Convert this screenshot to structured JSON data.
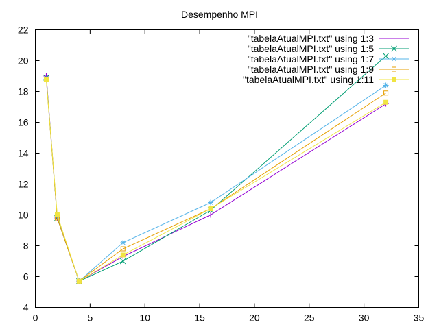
{
  "chart_data": {
    "type": "line",
    "title": "Desempenho MPI",
    "xlabel": "",
    "ylabel": "",
    "xlim": [
      0,
      35
    ],
    "ylim": [
      4,
      22
    ],
    "xticks": [
      0,
      5,
      10,
      15,
      20,
      25,
      30,
      35
    ],
    "yticks": [
      4,
      6,
      8,
      10,
      12,
      14,
      16,
      18,
      20,
      22
    ],
    "legend_position": "top-right",
    "x": [
      1,
      2,
      4,
      8,
      16,
      32
    ],
    "series": [
      {
        "name": "\"tabelaAtualMPI.txt\" using 1:3",
        "color": "#9400d3",
        "marker": "plus",
        "values": [
          19.0,
          9.8,
          5.7,
          7.3,
          10.0,
          17.2
        ]
      },
      {
        "name": "\"tabelaAtualMPI.txt\" using 1:5",
        "color": "#009e73",
        "marker": "cross",
        "values": [
          18.9,
          9.8,
          5.7,
          7.0,
          10.3,
          20.3
        ]
      },
      {
        "name": "\"tabelaAtualMPI.txt\" using 1:7",
        "color": "#56b4e9",
        "marker": "star",
        "values": [
          18.8,
          9.9,
          5.7,
          8.2,
          10.8,
          18.4
        ]
      },
      {
        "name": "\"tabelaAtualMPI.txt\" using 1:9",
        "color": "#e69f00",
        "marker": "square-open",
        "values": [
          18.8,
          9.8,
          5.7,
          7.8,
          10.4,
          17.9
        ]
      },
      {
        "name": "\"tabelaAtualMPI.txt\" using 1:11",
        "color": "#f0e442",
        "marker": "square-filled",
        "values": [
          18.8,
          10.0,
          5.7,
          7.4,
          10.4,
          17.3
        ]
      }
    ]
  }
}
